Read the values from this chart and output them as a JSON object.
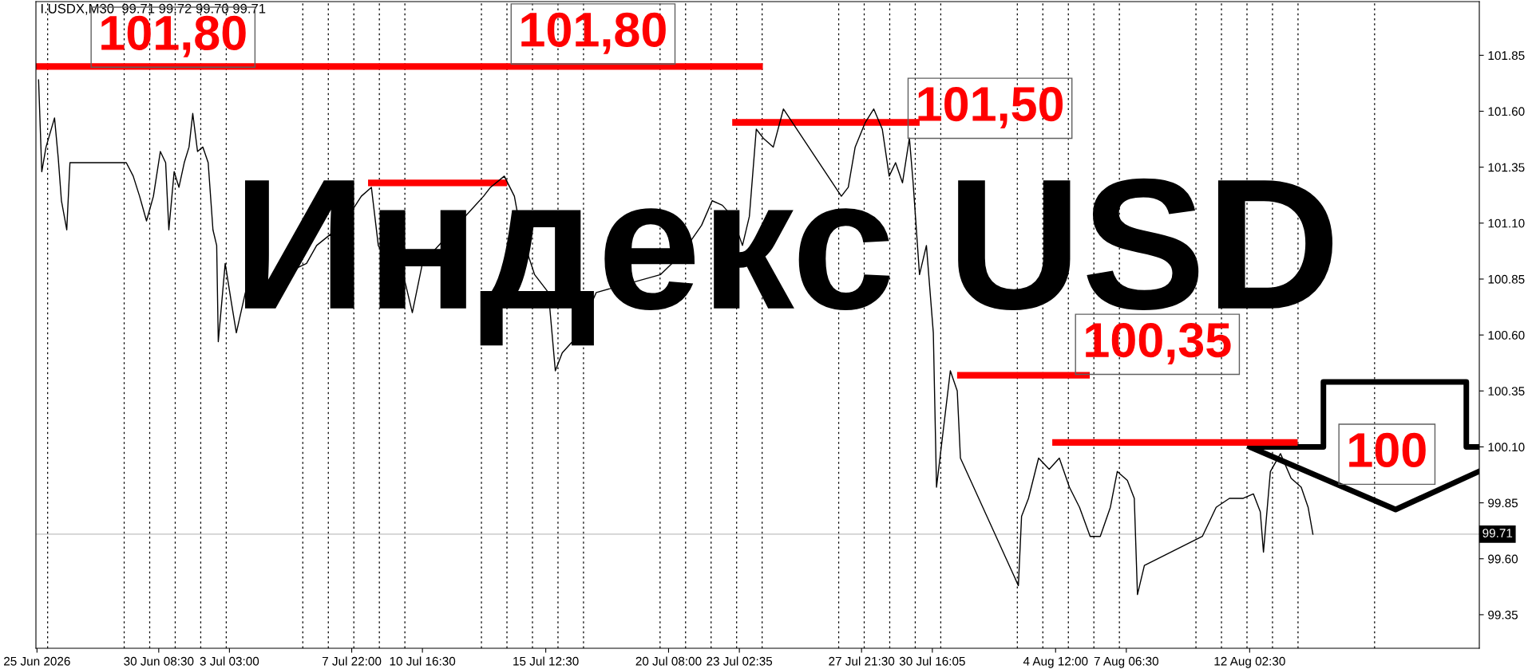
{
  "chart_data": {
    "type": "line",
    "xlim": [
      "2026-06-25T13:00",
      "2026-08-21T02:30"
    ],
    "ylim": [
      99.2,
      102.09
    ],
    "xticks": [
      {
        "value": "2026-06-25T14:00",
        "label": "25 Jun 2026"
      },
      {
        "value": "2026-06-30T08:30",
        "label": "30 Jun 08:30"
      },
      {
        "value": "2026-07-03T03:00",
        "label": "3 Jul 03:00"
      },
      {
        "value": "2026-07-07T22:00",
        "label": "7 Jul 22:00"
      },
      {
        "value": "2026-07-10T16:30",
        "label": "10 Jul 16:30"
      },
      {
        "value": "2026-07-15T12:30",
        "label": "15 Jul 12:30"
      },
      {
        "value": "2026-07-20T08:00",
        "label": "20 Jul 08:00"
      },
      {
        "value": "2026-07-23T02:35",
        "label": "23 Jul 02:35"
      },
      {
        "value": "2026-07-27T21:30",
        "label": "27 Jul 21:30"
      },
      {
        "value": "2026-07-30T16:05",
        "label": "30 Jul 16:05"
      },
      {
        "value": "2026-08-04T12:00",
        "label": "4 Aug 12:00"
      },
      {
        "value": "2026-08-07T06:30",
        "label": "7 Aug 06:30"
      },
      {
        "value": "2026-08-12T02:30",
        "label": "12 Aug 02:30"
      }
    ],
    "yticks": [
      {
        "value": 99.35,
        "label": "99.35"
      },
      {
        "value": 99.6,
        "label": "99.60"
      },
      {
        "value": 99.85,
        "label": "99.85"
      },
      {
        "value": 100.1,
        "label": "100.10"
      },
      {
        "value": 100.35,
        "label": "100.35"
      },
      {
        "value": 100.6,
        "label": "100.60"
      },
      {
        "value": 100.85,
        "label": "100.85"
      },
      {
        "value": 101.1,
        "label": "101.10"
      },
      {
        "value": 101.35,
        "label": "101.35"
      },
      {
        "value": 101.6,
        "label": "101.60"
      },
      {
        "value": 101.85,
        "label": "101.85"
      }
    ],
    "grid": false,
    "series": [
      {
        "color": "#000000",
        "x": [
          "2026-06-25T15:30",
          "2026-06-25T18:30",
          "2026-06-25T22:30",
          "2026-06-26T06:30",
          "2026-06-26T10:00",
          "2026-06-26T13:00",
          "2026-06-26T18:00",
          "2026-06-26T21:00",
          "2026-06-29T02:00",
          "2026-06-29T08:30",
          "2026-06-29T14:30",
          "2026-06-29T21:00",
          "2026-06-30T03:30",
          "2026-06-30T10:00",
          "2026-06-30T15:00",
          "2026-06-30T18:00",
          "2026-06-30T23:00",
          "2026-07-01T03:30",
          "2026-07-01T08:30",
          "2026-07-01T13:00",
          "2026-07-01T16:30",
          "2026-07-01T21:00",
          "2026-07-02T02:00",
          "2026-07-02T07:00",
          "2026-07-02T11:30",
          "2026-07-02T15:00",
          "2026-07-02T16:30",
          "2026-07-02T23:00",
          "2026-07-03T05:00",
          "2026-07-03T09:30",
          "2026-07-03T18:00",
          "2026-07-06T03:30",
          "2026-07-06T13:00",
          "2026-07-07T02:00",
          "2026-07-07T11:30",
          "2026-07-07T21:30",
          "2026-07-08T07:00",
          "2026-07-08T16:30",
          "2026-07-08T23:00",
          "2026-07-09T08:30",
          "2026-07-09T18:00",
          "2026-07-10T07:00",
          "2026-07-10T16:30",
          "2026-07-13T02:00",
          "2026-07-13T08:30",
          "2026-07-13T21:30",
          "2026-07-14T07:00",
          "2026-07-14T13:30",
          "2026-07-15T02:00",
          "2026-07-15T15:00",
          "2026-07-15T21:30",
          "2026-07-16T04:00",
          "2026-07-16T13:30",
          "2026-07-16T23:00",
          "2026-07-17T12:00",
          "2026-07-20T00:30",
          "2026-07-20T20:00",
          "2026-07-21T15:00",
          "2026-07-22T01:00",
          "2026-07-22T10:30",
          "2026-07-22T20:00",
          "2026-07-23T05:30",
          "2026-07-23T12:00",
          "2026-07-23T18:30",
          "2026-07-24T01:00",
          "2026-07-24T10:30",
          "2026-07-24T20:00",
          "2026-07-27T02:30",
          "2026-07-27T09:00",
          "2026-07-27T15:30",
          "2026-07-28T01:00",
          "2026-07-28T09:00",
          "2026-07-28T17:00",
          "2026-07-28T23:30",
          "2026-07-29T05:30",
          "2026-07-29T12:00",
          "2026-07-29T18:30",
          "2026-07-29T22:00",
          "2026-07-30T04:00",
          "2026-07-30T10:30",
          "2026-07-30T17:00",
          "2026-07-30T20:00",
          "2026-07-31T02:30",
          "2026-07-31T09:00",
          "2026-07-31T15:30",
          "2026-07-31T18:30",
          "2026-08-03T01:00",
          "2026-08-03T04:00",
          "2026-08-03T10:30",
          "2026-08-03T20:00",
          "2026-08-04T06:00",
          "2026-08-04T15:30",
          "2026-08-05T01:00",
          "2026-08-05T10:30",
          "2026-08-05T20:30",
          "2026-08-06T06:00",
          "2026-08-06T15:30",
          "2026-08-06T22:00",
          "2026-08-07T07:30",
          "2026-08-07T14:00",
          "2026-08-07T17:00",
          "2026-08-07T23:30",
          "2026-08-10T06:00",
          "2026-08-10T19:00",
          "2026-08-11T07:30",
          "2026-08-11T20:30",
          "2026-08-12T06:00",
          "2026-08-12T12:30",
          "2026-08-12T15:30",
          "2026-08-12T22:00",
          "2026-08-13T07:30",
          "2026-08-13T17:30",
          "2026-08-14T03:00",
          "2026-08-14T09:30",
          "2026-08-14T14:00"
        ],
        "values": [
          101.74,
          101.33,
          101.44,
          101.57,
          101.39,
          101.2,
          101.07,
          101.37,
          101.37,
          101.31,
          101.22,
          101.11,
          101.22,
          101.42,
          101.37,
          101.07,
          101.33,
          101.26,
          101.37,
          101.44,
          101.59,
          101.42,
          101.44,
          101.37,
          101.07,
          101.0,
          100.57,
          100.92,
          100.74,
          100.61,
          100.79,
          100.92,
          101.0,
          101.05,
          100.96,
          101.15,
          101.22,
          101.26,
          101.0,
          100.92,
          100.96,
          100.7,
          100.92,
          101.22,
          101.26,
          101.31,
          101.22,
          101.05,
          100.87,
          100.79,
          100.44,
          100.52,
          100.57,
          100.65,
          100.79,
          100.87,
          100.96,
          101.09,
          101.2,
          101.18,
          101.13,
          101.0,
          101.13,
          101.52,
          101.48,
          101.44,
          101.61,
          101.22,
          101.26,
          101.44,
          101.55,
          101.61,
          101.52,
          101.31,
          101.37,
          101.28,
          101.48,
          101.28,
          100.87,
          101.0,
          100.61,
          99.92,
          100.18,
          100.44,
          100.35,
          100.05,
          99.48,
          99.79,
          99.87,
          100.05,
          100.0,
          100.05,
          99.92,
          99.83,
          99.7,
          99.7,
          99.83,
          99.99,
          99.95,
          99.87,
          99.44,
          99.57,
          99.7,
          99.83,
          99.87,
          99.87,
          99.89,
          99.81,
          99.63,
          99.99,
          100.07,
          99.96,
          99.92,
          99.83,
          99.71
        ]
      },
      {
        "color": "#ff0000",
        "x": [
          "2026-06-25T13:00",
          "2026-07-23T21:30"
        ],
        "values": [
          101.8,
          101.8
        ]
      },
      {
        "color": "#ff0000",
        "x": [
          "2026-07-08T16:30",
          "2026-07-13T21:00"
        ],
        "values": [
          101.28,
          101.28
        ]
      },
      {
        "color": "#ff0000",
        "x": [
          "2026-07-22T23:00",
          "2026-07-30T01:00"
        ],
        "values": [
          101.55,
          101.55
        ]
      },
      {
        "color": "#ff0000",
        "x": [
          "2026-07-31T18:30",
          "2026-08-05T17:00"
        ],
        "values": [
          100.42,
          100.42
        ]
      },
      {
        "color": "#ff0000",
        "x": [
          "2026-08-04T12:00",
          "2026-08-13T20:30"
        ],
        "values": [
          100.12,
          100.12
        ]
      }
    ],
    "ref_lines": [
      {
        "axis": "y",
        "value": 99.71,
        "label": "99.71",
        "color": "#c0c0c0",
        "line_style": "solid"
      },
      {
        "axis": "x",
        "value": "2026-06-26",
        "color": "#000000",
        "line_style": "dotted"
      },
      {
        "axis": "x",
        "value": "2026-06-29",
        "color": "#000000",
        "line_style": "dotted"
      },
      {
        "axis": "x",
        "value": "2026-06-30",
        "color": "#000000",
        "line_style": "dotted"
      },
      {
        "axis": "x",
        "value": "2026-07-01",
        "color": "#000000",
        "line_style": "dotted"
      },
      {
        "axis": "x",
        "value": "2026-07-02",
        "color": "#000000",
        "line_style": "dotted"
      },
      {
        "axis": "x",
        "value": "2026-07-03",
        "color": "#000000",
        "line_style": "dotted"
      },
      {
        "axis": "x",
        "value": "2026-07-06",
        "color": "#000000",
        "line_style": "dotted"
      },
      {
        "axis": "x",
        "value": "2026-07-07",
        "color": "#000000",
        "line_style": "dotted"
      },
      {
        "axis": "x",
        "value": "2026-07-08",
        "color": "#000000",
        "line_style": "dotted"
      },
      {
        "axis": "x",
        "value": "2026-07-09",
        "color": "#000000",
        "line_style": "dotted"
      },
      {
        "axis": "x",
        "value": "2026-07-10",
        "color": "#000000",
        "line_style": "dotted"
      },
      {
        "axis": "x",
        "value": "2026-07-13",
        "color": "#000000",
        "line_style": "dotted"
      },
      {
        "axis": "x",
        "value": "2026-07-14",
        "color": "#000000",
        "line_style": "dotted"
      },
      {
        "axis": "x",
        "value": "2026-07-15",
        "color": "#000000",
        "line_style": "dotted"
      },
      {
        "axis": "x",
        "value": "2026-07-16",
        "color": "#000000",
        "line_style": "dotted"
      },
      {
        "axis": "x",
        "value": "2026-07-17",
        "color": "#000000",
        "line_style": "dotted"
      },
      {
        "axis": "x",
        "value": "2026-07-20",
        "color": "#000000",
        "line_style": "dotted"
      },
      {
        "axis": "x",
        "value": "2026-07-21",
        "color": "#000000",
        "line_style": "dotted"
      },
      {
        "axis": "x",
        "value": "2026-07-22",
        "color": "#000000",
        "line_style": "dotted"
      },
      {
        "axis": "x",
        "value": "2026-07-23",
        "color": "#000000",
        "line_style": "dotted"
      },
      {
        "axis": "x",
        "value": "2026-07-24",
        "color": "#000000",
        "line_style": "dotted"
      },
      {
        "axis": "x",
        "value": "2026-07-27",
        "color": "#000000",
        "line_style": "dotted"
      },
      {
        "axis": "x",
        "value": "2026-07-28",
        "color": "#000000",
        "line_style": "dotted"
      },
      {
        "axis": "x",
        "value": "2026-07-29",
        "color": "#000000",
        "line_style": "dotted"
      },
      {
        "axis": "x",
        "value": "2026-07-30",
        "color": "#000000",
        "line_style": "dotted"
      },
      {
        "axis": "x",
        "value": "2026-07-31",
        "color": "#000000",
        "line_style": "dotted"
      },
      {
        "axis": "x",
        "value": "2026-08-03",
        "color": "#000000",
        "line_style": "dotted"
      },
      {
        "axis": "x",
        "value": "2026-08-04",
        "color": "#000000",
        "line_style": "dotted"
      },
      {
        "axis": "x",
        "value": "2026-08-05",
        "color": "#000000",
        "line_style": "dotted"
      },
      {
        "axis": "x",
        "value": "2026-08-06",
        "color": "#000000",
        "line_style": "dotted"
      },
      {
        "axis": "x",
        "value": "2026-08-07",
        "color": "#000000",
        "line_style": "dotted"
      },
      {
        "axis": "x",
        "value": "2026-08-10",
        "color": "#000000",
        "line_style": "dotted"
      },
      {
        "axis": "x",
        "value": "2026-08-11",
        "color": "#000000",
        "line_style": "dotted"
      },
      {
        "axis": "x",
        "value": "2026-08-12",
        "color": "#000000",
        "line_style": "dotted"
      },
      {
        "axis": "x",
        "value": "2026-08-13",
        "color": "#000000",
        "line_style": "dotted"
      },
      {
        "axis": "x",
        "value": "2026-08-14",
        "color": "#000000",
        "line_style": "dotted"
      },
      {
        "axis": "x",
        "value": "2026-08-17",
        "color": "#000000",
        "line_style": "dotted"
      }
    ],
    "annotations": [
      "I.USDX,M30  99.71 99.72 99.70 99.71",
      "Индекс USD",
      "101,80",
      "101,80",
      "101,50",
      "100,35",
      "100"
    ]
  }
}
